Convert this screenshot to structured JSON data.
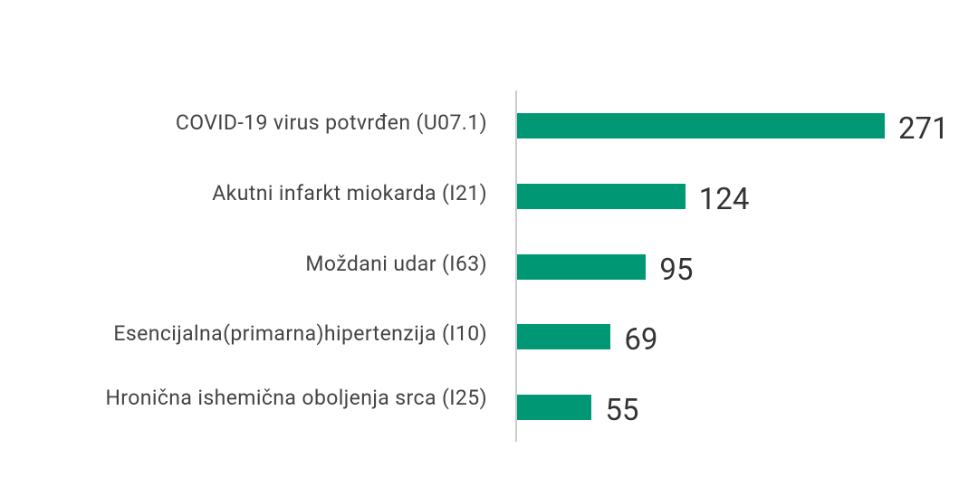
{
  "chart_data": {
    "type": "bar",
    "orientation": "horizontal",
    "categories": [
      "COVID-19 virus potvrđen (U07.1)",
      "Akutni infarkt miokarda (I21)",
      "Moždani udar (I63)",
      "Esencijalna(primarna)hipertenzija (I10)",
      "Hronična ishemična oboljenja srca (I25)"
    ],
    "values": [
      271,
      124,
      95,
      69,
      55
    ],
    "color": "#009874"
  }
}
